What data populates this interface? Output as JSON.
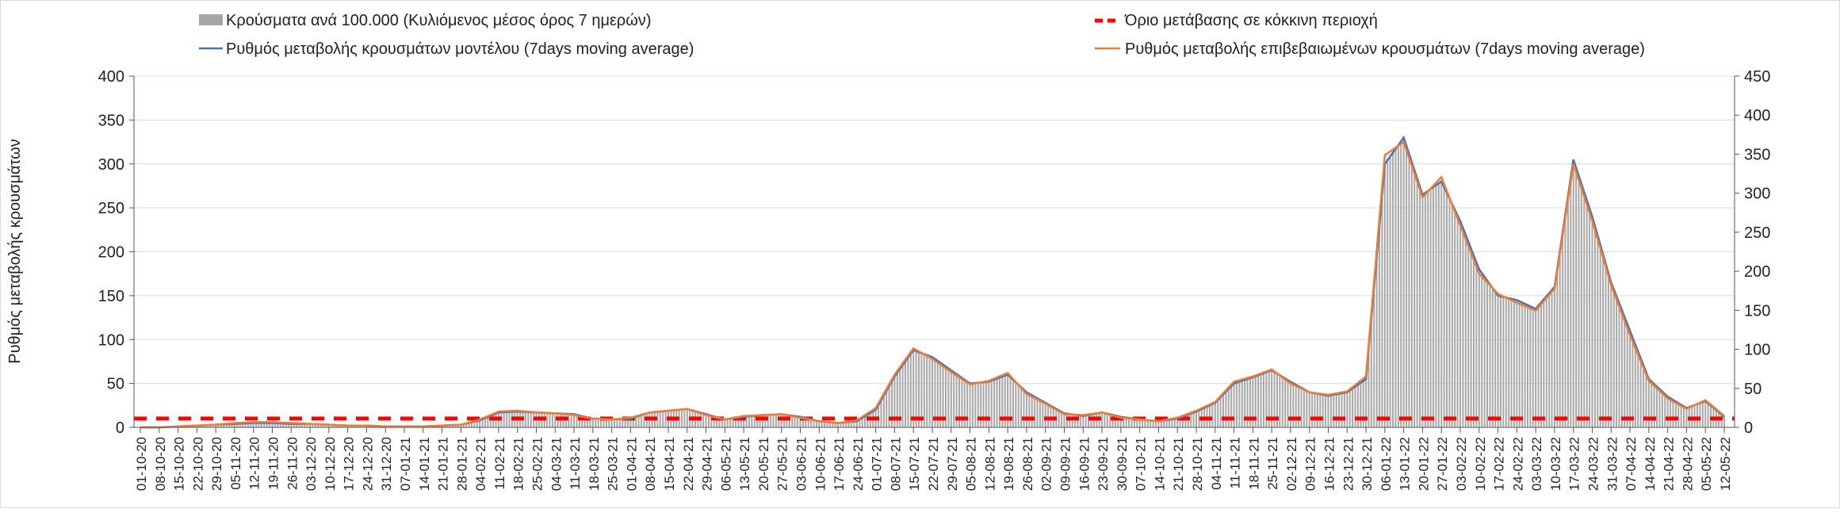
{
  "chart_data": {
    "type": "bar+line",
    "ylabel": "Ρυθμός μεταβολής κρουσμάτων",
    "ylim_left": [
      0,
      400
    ],
    "ylim_right": [
      0,
      450
    ],
    "yticks_left": [
      0,
      50,
      100,
      150,
      200,
      250,
      300,
      350,
      400
    ],
    "yticks_right": [
      0,
      50,
      100,
      150,
      200,
      250,
      300,
      350,
      400,
      450
    ],
    "legend": {
      "bars": "Κρούσματα ανά 100.000 (Κυλιόμενος μέσος όρος 7 ημερών)",
      "threshold": "Όριο μετάβασης σε κόκκινη περιοχή",
      "model": "Ρυθμός μεταβολής κρουσμάτων μοντέλου (7days moving average)",
      "confirmed": "Ρυθμός μεταβολής επιβεβαιωμένων κρουσμάτων (7days moving average)"
    },
    "colors": {
      "bars": "#a6a6a6",
      "threshold": "#ff0000",
      "model": "#4472c4",
      "confirmed": "#ed7d31"
    },
    "threshold_value": 10,
    "categories": [
      "01-10-20",
      "08-10-20",
      "15-10-20",
      "22-10-20",
      "29-10-20",
      "05-11-20",
      "12-11-20",
      "19-11-20",
      "26-11-20",
      "03-12-20",
      "10-12-20",
      "17-12-20",
      "24-12-20",
      "31-12-20",
      "07-01-21",
      "14-01-21",
      "21-01-21",
      "28-01-21",
      "04-02-21",
      "11-02-21",
      "18-02-21",
      "25-02-21",
      "04-03-21",
      "11-03-21",
      "18-03-21",
      "25-03-21",
      "01-04-21",
      "08-04-21",
      "15-04-21",
      "22-04-21",
      "29-04-21",
      "06-05-21",
      "13-05-21",
      "20-05-21",
      "27-05-21",
      "03-06-21",
      "10-06-21",
      "17-06-21",
      "24-06-21",
      "01-07-21",
      "08-07-21",
      "15-07-21",
      "22-07-21",
      "29-07-21",
      "05-08-21",
      "12-08-21",
      "19-08-21",
      "26-08-21",
      "02-09-21",
      "09-09-21",
      "16-09-21",
      "23-09-21",
      "30-09-21",
      "07-10-21",
      "14-10-21",
      "21-10-21",
      "28-10-21",
      "04-11-21",
      "11-11-21",
      "18-11-21",
      "25-11-21",
      "02-12-21",
      "09-12-21",
      "16-12-21",
      "23-12-21",
      "30-12-21",
      "06-01-22",
      "13-01-22",
      "20-01-22",
      "27-01-22",
      "03-02-22",
      "10-02-22",
      "17-02-22",
      "24-02-22",
      "03-03-22",
      "10-03-22",
      "17-03-22",
      "24-03-22",
      "31-03-22",
      "07-04-22",
      "14-04-22",
      "21-04-22",
      "28-04-22",
      "05-05-22",
      "12-05-22"
    ],
    "series": [
      {
        "name": "model",
        "axis": "left",
        "values": [
          0,
          0,
          1,
          2,
          3,
          4,
          5,
          5,
          4,
          4,
          3,
          2,
          2,
          1,
          1,
          1,
          2,
          3,
          8,
          17,
          18,
          17,
          16,
          15,
          10,
          9,
          10,
          17,
          19,
          21,
          15,
          9,
          12,
          14,
          15,
          12,
          7,
          5,
          7,
          20,
          58,
          88,
          80,
          65,
          50,
          52,
          60,
          40,
          28,
          16,
          13,
          17,
          12,
          9,
          7,
          10,
          18,
          28,
          50,
          57,
          65,
          52,
          40,
          36,
          40,
          55,
          300,
          330,
          265,
          280,
          235,
          180,
          150,
          145,
          135,
          160,
          305,
          240,
          165,
          110,
          55,
          35,
          22,
          30,
          12
        ]
      },
      {
        "name": "confirmed",
        "axis": "left",
        "values": [
          0,
          0,
          1,
          2,
          3,
          5,
          6,
          6,
          5,
          4,
          3,
          2,
          2,
          1,
          1,
          1,
          2,
          3,
          9,
          18,
          19,
          17,
          16,
          14,
          10,
          9,
          11,
          17,
          19,
          21,
          14,
          9,
          13,
          14,
          15,
          11,
          7,
          5,
          8,
          22,
          60,
          90,
          78,
          63,
          49,
          53,
          62,
          38,
          27,
          15,
          14,
          17,
          11,
          9,
          7,
          11,
          19,
          29,
          52,
          58,
          66,
          50,
          40,
          37,
          41,
          58,
          310,
          325,
          262,
          285,
          230,
          175,
          152,
          142,
          133,
          158,
          300,
          235,
          162,
          105,
          53,
          33,
          21,
          31,
          13
        ]
      },
      {
        "name": "bars",
        "axis": "right",
        "values": [
          0,
          0,
          1,
          2,
          3,
          5,
          6,
          6,
          5,
          4,
          3,
          2,
          2,
          1,
          1,
          1,
          2,
          3,
          9,
          19,
          20,
          19,
          18,
          16,
          11,
          10,
          11,
          19,
          21,
          24,
          16,
          10,
          14,
          16,
          17,
          13,
          8,
          6,
          8,
          23,
          66,
          100,
          90,
          72,
          56,
          59,
          68,
          45,
          31,
          18,
          15,
          19,
          13,
          10,
          8,
          11,
          20,
          32,
          57,
          64,
          73,
          58,
          45,
          41,
          45,
          62,
          340,
          370,
          298,
          316,
          263,
          201,
          170,
          163,
          151,
          180,
          343,
          270,
          185,
          122,
          61,
          39,
          25,
          34,
          14
        ]
      }
    ]
  }
}
